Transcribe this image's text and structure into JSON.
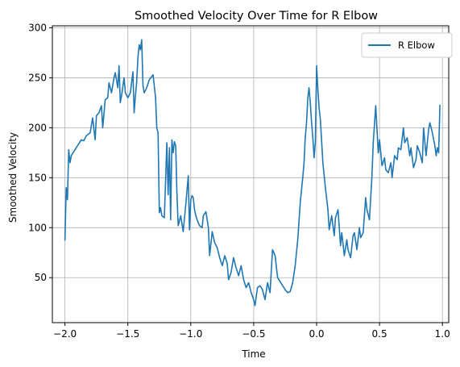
{
  "chart_data": {
    "type": "line",
    "title": "Smoothed Velocity Over Time for R Elbow",
    "xlabel": "Time",
    "ylabel": "Smoothed Velocity",
    "xlim": [
      -2.1,
      1.05
    ],
    "ylim": [
      5,
      302
    ],
    "xticks": [
      -2.0,
      -1.5,
      -1.0,
      -0.5,
      0.0,
      0.5,
      1.0
    ],
    "xtick_labels": [
      "−2.0",
      "−1.5",
      "−1.0",
      "−0.5",
      "0.0",
      "0.5",
      "1.0"
    ],
    "yticks": [
      50,
      100,
      150,
      200,
      250,
      300
    ],
    "ytick_labels": [
      "50",
      "100",
      "150",
      "200",
      "250",
      "300"
    ],
    "grid": true,
    "legend_position": "top-right",
    "series": [
      {
        "name": "R Elbow",
        "color": "#1f77b4",
        "x": [
          -2.0,
          -1.99,
          -1.98,
          -1.97,
          -1.96,
          -1.95,
          -1.93,
          -1.9,
          -1.87,
          -1.85,
          -1.83,
          -1.8,
          -1.78,
          -1.76,
          -1.75,
          -1.73,
          -1.71,
          -1.7,
          -1.68,
          -1.66,
          -1.65,
          -1.63,
          -1.61,
          -1.6,
          -1.58,
          -1.57,
          -1.56,
          -1.55,
          -1.53,
          -1.52,
          -1.5,
          -1.48,
          -1.46,
          -1.45,
          -1.44,
          -1.43,
          -1.42,
          -1.41,
          -1.4,
          -1.39,
          -1.38,
          -1.37,
          -1.35,
          -1.33,
          -1.3,
          -1.28,
          -1.27,
          -1.26,
          -1.25,
          -1.24,
          -1.23,
          -1.21,
          -1.19,
          -1.18,
          -1.17,
          -1.16,
          -1.15,
          -1.14,
          -1.13,
          -1.12,
          -1.11,
          -1.1,
          -1.08,
          -1.06,
          -1.04,
          -1.02,
          -1.01,
          -1.0,
          -0.99,
          -0.98,
          -0.97,
          -0.96,
          -0.95,
          -0.93,
          -0.91,
          -0.9,
          -0.88,
          -0.86,
          -0.85,
          -0.83,
          -0.81,
          -0.79,
          -0.77,
          -0.75,
          -0.73,
          -0.71,
          -0.7,
          -0.68,
          -0.66,
          -0.64,
          -0.62,
          -0.6,
          -0.58,
          -0.56,
          -0.54,
          -0.52,
          -0.5,
          -0.49,
          -0.47,
          -0.45,
          -0.43,
          -0.41,
          -0.39,
          -0.37,
          -0.35,
          -0.33,
          -0.31,
          -0.29,
          -0.27,
          -0.25,
          -0.23,
          -0.21,
          -0.19,
          -0.17,
          -0.15,
          -0.13,
          -0.11,
          -0.1,
          -0.09,
          -0.08,
          -0.07,
          -0.06,
          -0.05,
          -0.04,
          -0.03,
          -0.02,
          -0.01,
          0.0,
          0.01,
          0.02,
          0.03,
          0.05,
          0.07,
          0.09,
          0.1,
          0.12,
          0.14,
          0.15,
          0.17,
          0.19,
          0.2,
          0.22,
          0.24,
          0.25,
          0.27,
          0.29,
          0.3,
          0.32,
          0.34,
          0.35,
          0.37,
          0.39,
          0.4,
          0.42,
          0.44,
          0.45,
          0.47,
          0.49,
          0.5,
          0.52,
          0.54,
          0.55,
          0.57,
          0.59,
          0.6,
          0.62,
          0.64,
          0.65,
          0.67,
          0.69,
          0.7,
          0.72,
          0.74,
          0.75,
          0.77,
          0.79,
          0.8,
          0.82,
          0.84,
          0.85,
          0.87,
          0.89,
          0.9,
          0.92,
          0.94,
          0.95,
          0.96,
          0.97,
          0.98
        ],
        "values": [
          87,
          140,
          128,
          178,
          165,
          172,
          176,
          182,
          188,
          187,
          192,
          195,
          210,
          188,
          212,
          215,
          222,
          200,
          228,
          230,
          245,
          235,
          250,
          255,
          240,
          262,
          225,
          232,
          250,
          235,
          230,
          235,
          256,
          215,
          232,
          245,
          270,
          283,
          278,
          288,
          242,
          235,
          240,
          248,
          253,
          230,
          200,
          195,
          115,
          120,
          112,
          110,
          185,
          133,
          180,
          108,
          188,
          175,
          186,
          182,
          135,
          102,
          112,
          96,
          123,
          152,
          98,
          128,
          132,
          130,
          118,
          112,
          108,
          102,
          100,
          112,
          116,
          100,
          72,
          96,
          85,
          80,
          70,
          62,
          72,
          64,
          48,
          55,
          70,
          60,
          52,
          62,
          48,
          40,
          45,
          35,
          28,
          22,
          40,
          42,
          38,
          28,
          45,
          35,
          78,
          72,
          50,
          46,
          42,
          38,
          35,
          36,
          45,
          62,
          88,
          125,
          150,
          165,
          190,
          205,
          230,
          240,
          225,
          205,
          190,
          170,
          185,
          262,
          238,
          220,
          208,
          165,
          140,
          118,
          98,
          112,
          92,
          110,
          118,
          82,
          95,
          72,
          88,
          78,
          70,
          92,
          95,
          78,
          100,
          90,
          95,
          130,
          118,
          108,
          152,
          185,
          222,
          175,
          188,
          162,
          170,
          158,
          155,
          165,
          150,
          172,
          168,
          180,
          178,
          200,
          185,
          190,
          172,
          180,
          160,
          168,
          182,
          175,
          165,
          200,
          172,
          198,
          205,
          195,
          182,
          172,
          180,
          175,
          223
        ]
      }
    ]
  }
}
